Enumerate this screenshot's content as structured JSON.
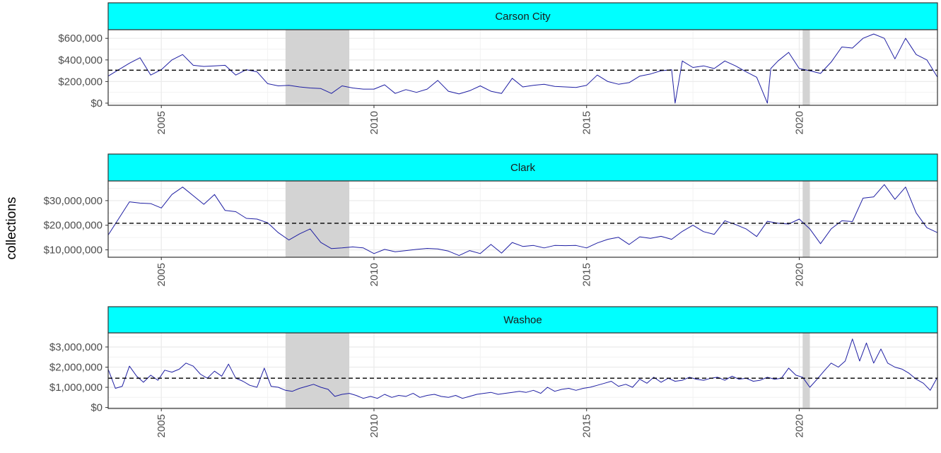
{
  "figure": {
    "ylabel": "collections"
  },
  "chart_data": [
    {
      "type": "line",
      "strip_label": "Carson City",
      "xlim": [
        2003.75,
        2023.25
      ],
      "ylim": [
        -20000,
        680000
      ],
      "x_ticks": [
        2005,
        2010,
        2015,
        2020
      ],
      "x_tick_labels": [
        "2005",
        "2010",
        "2015",
        "2020"
      ],
      "y_ticks": [
        0,
        200000,
        400000,
        600000
      ],
      "y_tick_labels": [
        "$0",
        "$200,000",
        "$400,000",
        "$600,000"
      ],
      "reference_line": 305000,
      "recession_bands": [
        [
          2007.92,
          2009.42
        ],
        [
          2020.08,
          2020.25
        ]
      ],
      "x": [
        2003.75,
        2004.0,
        2004.25,
        2004.5,
        2004.75,
        2005.0,
        2005.25,
        2005.5,
        2005.75,
        2006.0,
        2006.25,
        2006.5,
        2006.75,
        2007.0,
        2007.25,
        2007.5,
        2007.75,
        2008.0,
        2008.25,
        2008.5,
        2008.75,
        2009.0,
        2009.25,
        2009.5,
        2009.75,
        2010.0,
        2010.25,
        2010.5,
        2010.75,
        2011.0,
        2011.25,
        2011.5,
        2011.75,
        2012.0,
        2012.25,
        2012.5,
        2012.75,
        2013.0,
        2013.25,
        2013.5,
        2013.75,
        2014.0,
        2014.25,
        2014.5,
        2014.75,
        2015.0,
        2015.25,
        2015.5,
        2015.75,
        2016.0,
        2016.25,
        2016.5,
        2016.75,
        2017.0,
        2017.08,
        2017.25,
        2017.5,
        2017.75,
        2018.0,
        2018.25,
        2018.5,
        2018.75,
        2019.0,
        2019.25,
        2019.33,
        2019.5,
        2019.75,
        2020.0,
        2020.25,
        2020.5,
        2020.75,
        2021.0,
        2021.25,
        2021.5,
        2021.75,
        2022.0,
        2022.25,
        2022.5,
        2022.75,
        2023.0,
        2023.25
      ],
      "y": [
        250000,
        310000,
        370000,
        420000,
        260000,
        310000,
        400000,
        450000,
        350000,
        340000,
        345000,
        350000,
        260000,
        310000,
        290000,
        180000,
        160000,
        165000,
        150000,
        140000,
        135000,
        90000,
        160000,
        140000,
        130000,
        130000,
        170000,
        90000,
        125000,
        100000,
        130000,
        210000,
        110000,
        85000,
        115000,
        160000,
        110000,
        90000,
        230000,
        150000,
        165000,
        175000,
        155000,
        150000,
        145000,
        165000,
        260000,
        200000,
        175000,
        190000,
        250000,
        270000,
        300000,
        310000,
        0,
        390000,
        330000,
        345000,
        320000,
        390000,
        345000,
        290000,
        240000,
        0,
        320000,
        390000,
        470000,
        320000,
        300000,
        275000,
        380000,
        520000,
        510000,
        600000,
        640000,
        600000,
        410000,
        600000,
        450000,
        400000,
        240000
      ],
      "y_end": 300000
    },
    {
      "type": "line",
      "strip_label": "Clark",
      "xlim": [
        2003.75,
        2023.25
      ],
      "ylim": [
        7000000,
        38000000
      ],
      "x_ticks": [
        2005,
        2010,
        2015,
        2020
      ],
      "x_tick_labels": [
        "2005",
        "2010",
        "2015",
        "2020"
      ],
      "y_ticks": [
        10000000,
        20000000,
        30000000
      ],
      "y_tick_labels": [
        "$10,000,000",
        "$20,000,000",
        "$30,000,000"
      ],
      "reference_line": 20800000,
      "recession_bands": [
        [
          2007.92,
          2009.42
        ],
        [
          2020.08,
          2020.25
        ]
      ],
      "x": [
        2003.75,
        2004.25,
        2004.5,
        2004.75,
        2005.0,
        2005.25,
        2005.5,
        2005.75,
        2006.0,
        2006.25,
        2006.5,
        2006.75,
        2007.0,
        2007.25,
        2007.5,
        2007.75,
        2008.0,
        2008.25,
        2008.5,
        2008.75,
        2009.0,
        2009.25,
        2009.5,
        2009.75,
        2010.0,
        2010.25,
        2010.5,
        2010.75,
        2011.0,
        2011.25,
        2011.5,
        2011.75,
        2012.0,
        2012.25,
        2012.5,
        2012.75,
        2013.0,
        2013.25,
        2013.5,
        2013.75,
        2014.0,
        2014.25,
        2014.5,
        2014.75,
        2015.0,
        2015.25,
        2015.5,
        2015.75,
        2016.0,
        2016.25,
        2016.5,
        2016.75,
        2017.0,
        2017.25,
        2017.5,
        2017.75,
        2018.0,
        2018.25,
        2018.5,
        2018.75,
        2019.0,
        2019.25,
        2019.5,
        2019.75,
        2020.0,
        2020.25,
        2020.5,
        2020.75,
        2021.0,
        2021.25,
        2021.5,
        2021.75,
        2022.0,
        2022.25,
        2022.5,
        2022.75,
        2023.0,
        2023.25
      ],
      "y": [
        16000000,
        29500000,
        29000000,
        28800000,
        27000000,
        32500000,
        35500000,
        32000000,
        28500000,
        32500000,
        26000000,
        25500000,
        22800000,
        22500000,
        21000000,
        17000000,
        14000000,
        16500000,
        18500000,
        13000000,
        10500000,
        10800000,
        11200000,
        10800000,
        8500000,
        10200000,
        9200000,
        9700000,
        10200000,
        10600000,
        10400000,
        9500000,
        7700000,
        9700000,
        8500000,
        12200000,
        8700000,
        13000000,
        11400000,
        11800000,
        10800000,
        11800000,
        11700000,
        11800000,
        10800000,
        12800000,
        14300000,
        15100000,
        12200000,
        15300000,
        14700000,
        15500000,
        14300000,
        17500000,
        20000000,
        17400000,
        16300000,
        21800000,
        20300000,
        18500000,
        15400000,
        21600000,
        20800000,
        20500000,
        22500000,
        18500000,
        12500000,
        18500000,
        21800000,
        21500000,
        31000000,
        31500000,
        36500000,
        30500000,
        35500000,
        25000000,
        19000000,
        17000000
      ],
      "y_end": 20500000
    },
    {
      "type": "line",
      "strip_label": "Washoe",
      "xlim": [
        2003.75,
        2023.25
      ],
      "ylim": [
        -50000,
        3700000
      ],
      "x_ticks": [
        2005,
        2010,
        2015,
        2020
      ],
      "x_tick_labels": [
        "2005",
        "2010",
        "2015",
        "2020"
      ],
      "y_ticks": [
        0,
        1000000,
        2000000,
        3000000
      ],
      "y_tick_labels": [
        "$0",
        "$1,000,000",
        "$2,000,000",
        "$3,000,000"
      ],
      "reference_line": 1450000,
      "recession_bands": [
        [
          2007.92,
          2009.42
        ],
        [
          2020.08,
          2020.25
        ]
      ],
      "x": [
        2003.75,
        2003.92,
        2004.08,
        2004.25,
        2004.42,
        2004.58,
        2004.75,
        2004.92,
        2005.08,
        2005.25,
        2005.42,
        2005.58,
        2005.75,
        2005.92,
        2006.08,
        2006.25,
        2006.42,
        2006.58,
        2006.75,
        2006.92,
        2007.08,
        2007.25,
        2007.42,
        2007.58,
        2007.75,
        2007.92,
        2008.08,
        2008.25,
        2008.42,
        2008.58,
        2008.75,
        2008.92,
        2009.08,
        2009.25,
        2009.42,
        2009.58,
        2009.75,
        2009.92,
        2010.08,
        2010.25,
        2010.42,
        2010.58,
        2010.75,
        2010.92,
        2011.08,
        2011.25,
        2011.42,
        2011.58,
        2011.75,
        2011.92,
        2012.08,
        2012.25,
        2012.42,
        2012.58,
        2012.75,
        2012.92,
        2013.08,
        2013.25,
        2013.42,
        2013.58,
        2013.75,
        2013.92,
        2014.08,
        2014.25,
        2014.42,
        2014.58,
        2014.75,
        2014.92,
        2015.08,
        2015.25,
        2015.42,
        2015.58,
        2015.75,
        2015.92,
        2016.08,
        2016.25,
        2016.42,
        2016.58,
        2016.75,
        2016.92,
        2017.08,
        2017.25,
        2017.42,
        2017.58,
        2017.75,
        2017.92,
        2018.08,
        2018.25,
        2018.42,
        2018.58,
        2018.75,
        2018.92,
        2019.08,
        2019.25,
        2019.42,
        2019.58,
        2019.75,
        2019.92,
        2020.08,
        2020.25,
        2020.42,
        2020.58,
        2020.75,
        2020.92,
        2021.08,
        2021.25,
        2021.42,
        2021.58,
        2021.75,
        2021.92,
        2022.08,
        2022.25,
        2022.42,
        2022.58,
        2022.75,
        2022.92,
        2023.08,
        2023.25
      ],
      "y": [
        1900000,
        950000,
        1050000,
        2050000,
        1550000,
        1250000,
        1600000,
        1350000,
        1850000,
        1750000,
        1900000,
        2200000,
        2050000,
        1650000,
        1450000,
        1800000,
        1550000,
        2150000,
        1450000,
        1300000,
        1100000,
        1000000,
        1950000,
        1050000,
        1000000,
        850000,
        800000,
        950000,
        1050000,
        1150000,
        1000000,
        900000,
        550000,
        650000,
        700000,
        600000,
        450000,
        550000,
        450000,
        650000,
        500000,
        600000,
        550000,
        700000,
        500000,
        600000,
        650000,
        550000,
        500000,
        600000,
        450000,
        550000,
        650000,
        700000,
        750000,
        650000,
        700000,
        750000,
        800000,
        750000,
        850000,
        700000,
        1000000,
        800000,
        900000,
        950000,
        850000,
        950000,
        1000000,
        1100000,
        1200000,
        1300000,
        1050000,
        1150000,
        1000000,
        1400000,
        1200000,
        1500000,
        1250000,
        1450000,
        1300000,
        1350000,
        1500000,
        1400000,
        1350000,
        1450000,
        1500000,
        1350000,
        1550000,
        1400000,
        1450000,
        1300000,
        1350000,
        1500000,
        1400000,
        1450000,
        1950000,
        1600000,
        1500000,
        1000000,
        1400000,
        1800000,
        2200000,
        2000000,
        2300000,
        3400000,
        2300000,
        3200000,
        2200000,
        2900000,
        2200000,
        2000000,
        1900000,
        1700000,
        1400000,
        1200000,
        850000,
        1500000
      ],
      "y_end": 1650000
    }
  ]
}
